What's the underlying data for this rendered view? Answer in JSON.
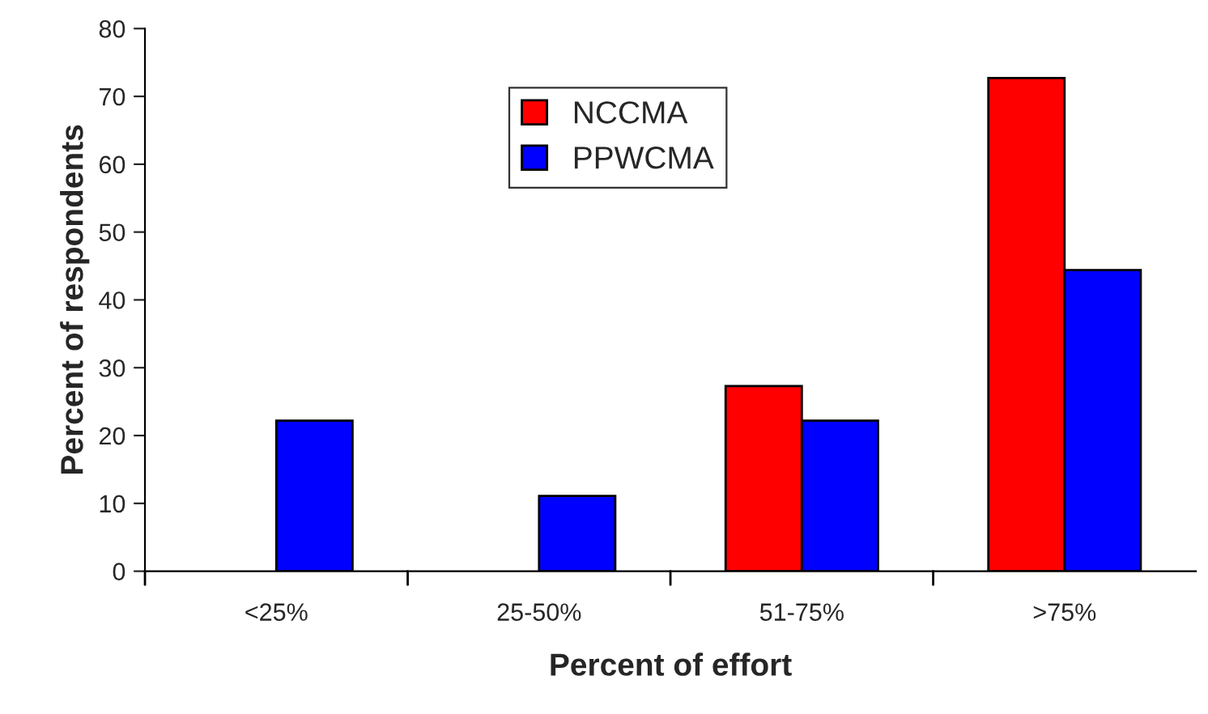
{
  "chart_data": {
    "type": "bar",
    "xlabel": "Percent of effort",
    "ylabel": "Percent of respondents",
    "categories": [
      "<25%",
      "25-50%",
      "51-75%",
      ">75%"
    ],
    "series": [
      {
        "name": "NCCMA",
        "color": "#ff0000",
        "values": [
          null,
          null,
          27.3,
          72.7
        ]
      },
      {
        "name": "PPWCMA",
        "color": "#0000ff",
        "values": [
          22.2,
          11.1,
          22.2,
          44.4
        ]
      }
    ],
    "ylim": [
      0,
      80
    ],
    "yticks": [
      0,
      10,
      20,
      30,
      40,
      50,
      60,
      70,
      80
    ],
    "grid": false,
    "legend": "top"
  }
}
